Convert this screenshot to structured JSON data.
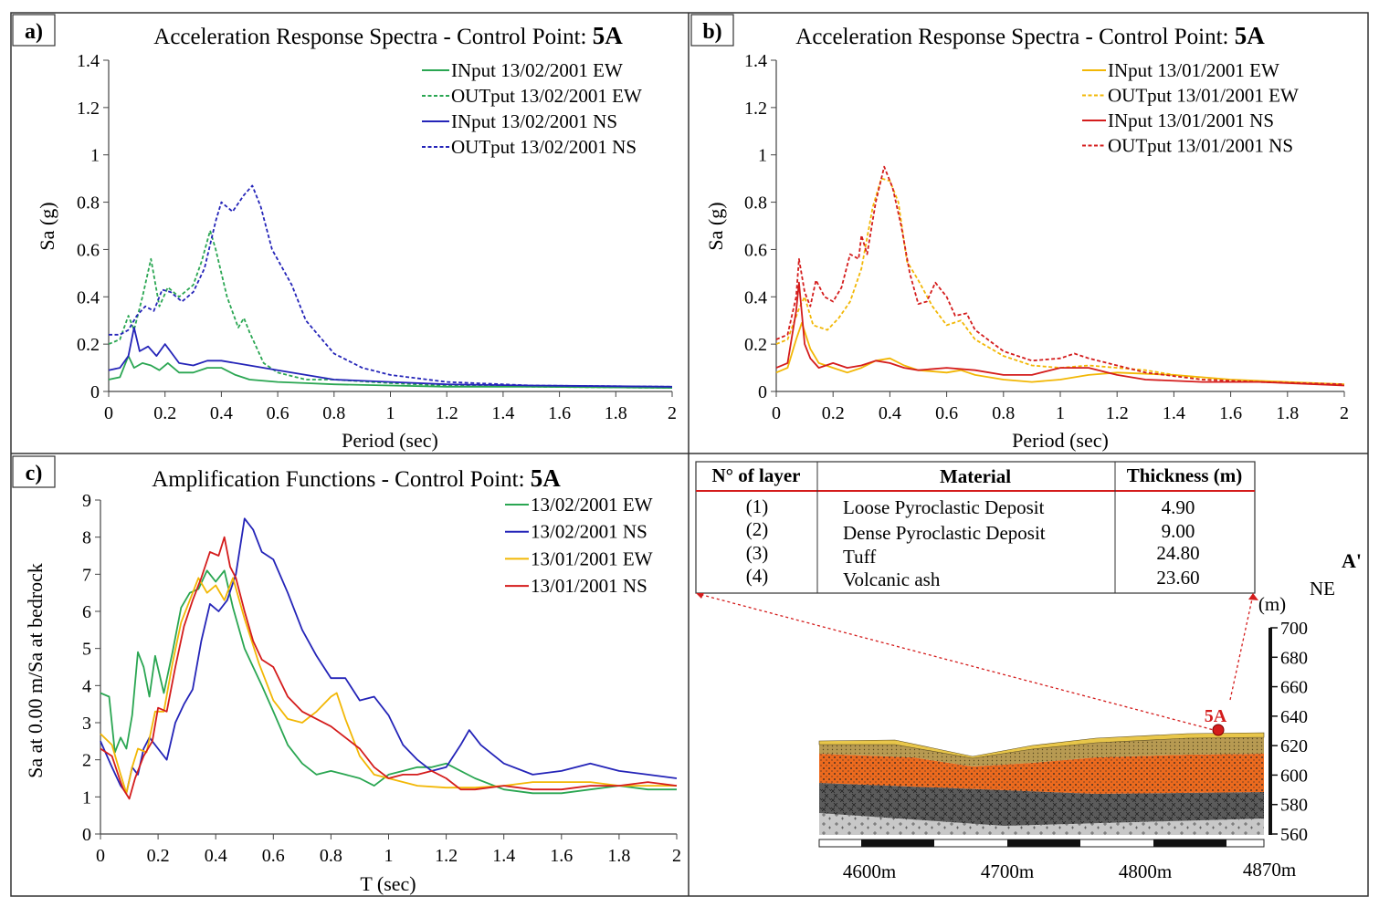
{
  "chart_data": [
    {
      "type": "line",
      "panel_label": "a)",
      "title_prefix": "Acceleration Response Spectra - Control Point: ",
      "title_point": "5A",
      "xlabel": "Period (sec)",
      "ylabel": "Sa (g)",
      "xlim": [
        0,
        2
      ],
      "ylim": [
        0,
        1.4
      ],
      "xticks": [
        "0",
        "0.2",
        "0.4",
        "0.6",
        "0.8",
        "1",
        "1.2",
        "1.4",
        "1.6",
        "1.8",
        "2"
      ],
      "yticks": [
        "0",
        "0.2",
        "0.4",
        "0.6",
        "0.8",
        "1",
        "1.2",
        "1.4"
      ],
      "legend_position": "top-right",
      "series": [
        {
          "name": "INput 13/02/2001 EW",
          "color": "#2aa652",
          "dash": "solid",
          "x": [
            0,
            0.04,
            0.07,
            0.09,
            0.12,
            0.15,
            0.18,
            0.21,
            0.25,
            0.3,
            0.35,
            0.4,
            0.45,
            0.5,
            0.6,
            0.7,
            0.8,
            1.0,
            1.2,
            1.5,
            2.0
          ],
          "y": [
            0.05,
            0.06,
            0.15,
            0.1,
            0.12,
            0.11,
            0.09,
            0.12,
            0.08,
            0.08,
            0.1,
            0.1,
            0.07,
            0.05,
            0.04,
            0.035,
            0.03,
            0.025,
            0.02,
            0.02,
            0.015
          ]
        },
        {
          "name": "OUTput 13/02/2001 EW",
          "color": "#2aa652",
          "dash": "dashed",
          "x": [
            0,
            0.04,
            0.07,
            0.09,
            0.12,
            0.15,
            0.18,
            0.21,
            0.25,
            0.3,
            0.33,
            0.36,
            0.38,
            0.42,
            0.46,
            0.48,
            0.5,
            0.55,
            0.6,
            0.7,
            0.8,
            1.0,
            1.2,
            1.5,
            2.0
          ],
          "y": [
            0.2,
            0.22,
            0.32,
            0.26,
            0.4,
            0.56,
            0.36,
            0.44,
            0.4,
            0.45,
            0.55,
            0.68,
            0.6,
            0.4,
            0.27,
            0.31,
            0.25,
            0.12,
            0.08,
            0.05,
            0.05,
            0.035,
            0.025,
            0.02,
            0.015
          ]
        },
        {
          "name": "INput 13/02/2001 NS",
          "color": "#2424b8",
          "dash": "solid",
          "x": [
            0,
            0.04,
            0.07,
            0.09,
            0.11,
            0.14,
            0.17,
            0.2,
            0.25,
            0.3,
            0.35,
            0.4,
            0.5,
            0.6,
            0.7,
            0.8,
            1.0,
            1.2,
            1.5,
            2.0
          ],
          "y": [
            0.09,
            0.1,
            0.15,
            0.27,
            0.17,
            0.19,
            0.15,
            0.2,
            0.12,
            0.11,
            0.13,
            0.13,
            0.11,
            0.09,
            0.07,
            0.05,
            0.04,
            0.03,
            0.025,
            0.02
          ]
        },
        {
          "name": "OUTput 13/02/2001 NS",
          "color": "#2424b8",
          "dash": "dashed",
          "x": [
            0,
            0.04,
            0.07,
            0.1,
            0.13,
            0.16,
            0.19,
            0.22,
            0.26,
            0.3,
            0.34,
            0.38,
            0.4,
            0.44,
            0.48,
            0.51,
            0.54,
            0.58,
            0.65,
            0.7,
            0.8,
            0.9,
            1.0,
            1.2,
            1.5,
            2.0
          ],
          "y": [
            0.24,
            0.24,
            0.26,
            0.32,
            0.36,
            0.34,
            0.43,
            0.42,
            0.38,
            0.42,
            0.52,
            0.72,
            0.8,
            0.76,
            0.83,
            0.87,
            0.78,
            0.6,
            0.45,
            0.3,
            0.16,
            0.1,
            0.07,
            0.04,
            0.025,
            0.02
          ]
        }
      ]
    },
    {
      "type": "line",
      "panel_label": "b)",
      "title_prefix": "Acceleration Response Spectra - Control Point: ",
      "title_point": "5A",
      "xlabel": "Period (sec)",
      "ylabel": "Sa (g)",
      "xlim": [
        0,
        2
      ],
      "ylim": [
        0,
        1.4
      ],
      "xticks": [
        "0",
        "0.2",
        "0.4",
        "0.6",
        "0.8",
        "1",
        "1.2",
        "1.4",
        "1.6",
        "1.8",
        "2"
      ],
      "yticks": [
        "0",
        "0.2",
        "0.4",
        "0.6",
        "0.8",
        "1",
        "1.2",
        "1.4"
      ],
      "legend_position": "top-right",
      "series": [
        {
          "name": "INput 13/01/2001 EW",
          "color": "#f2b705",
          "dash": "solid",
          "x": [
            0,
            0.04,
            0.07,
            0.09,
            0.12,
            0.15,
            0.2,
            0.25,
            0.3,
            0.35,
            0.4,
            0.45,
            0.5,
            0.6,
            0.65,
            0.7,
            0.8,
            0.9,
            1.0,
            1.1,
            1.2,
            1.4,
            1.6,
            1.8,
            2.0
          ],
          "y": [
            0.08,
            0.1,
            0.22,
            0.29,
            0.18,
            0.12,
            0.1,
            0.08,
            0.1,
            0.13,
            0.14,
            0.11,
            0.09,
            0.08,
            0.09,
            0.07,
            0.05,
            0.04,
            0.05,
            0.07,
            0.08,
            0.07,
            0.05,
            0.04,
            0.03
          ]
        },
        {
          "name": "OUTput 13/01/2001 EW",
          "color": "#f2b705",
          "dash": "dashed",
          "x": [
            0,
            0.04,
            0.08,
            0.1,
            0.13,
            0.18,
            0.22,
            0.26,
            0.3,
            0.34,
            0.37,
            0.4,
            0.43,
            0.46,
            0.5,
            0.55,
            0.6,
            0.65,
            0.7,
            0.8,
            0.9,
            1.0,
            1.1,
            1.3,
            1.5,
            2.0
          ],
          "y": [
            0.2,
            0.22,
            0.35,
            0.4,
            0.28,
            0.26,
            0.31,
            0.38,
            0.52,
            0.78,
            0.9,
            0.89,
            0.8,
            0.55,
            0.47,
            0.36,
            0.28,
            0.3,
            0.22,
            0.15,
            0.11,
            0.1,
            0.11,
            0.09,
            0.05,
            0.03
          ]
        },
        {
          "name": "INput 13/01/2001 NS",
          "color": "#d41c1c",
          "dash": "solid",
          "x": [
            0,
            0.04,
            0.07,
            0.08,
            0.1,
            0.12,
            0.15,
            0.2,
            0.25,
            0.3,
            0.35,
            0.4,
            0.45,
            0.5,
            0.6,
            0.7,
            0.8,
            0.9,
            1.0,
            1.1,
            1.2,
            1.3,
            1.5,
            1.7,
            2.0
          ],
          "y": [
            0.1,
            0.12,
            0.34,
            0.46,
            0.2,
            0.14,
            0.1,
            0.12,
            0.1,
            0.11,
            0.13,
            0.12,
            0.1,
            0.09,
            0.1,
            0.09,
            0.07,
            0.07,
            0.1,
            0.1,
            0.07,
            0.05,
            0.04,
            0.04,
            0.025
          ]
        },
        {
          "name": "OUTput 13/01/2001 NS",
          "color": "#d41c1c",
          "dash": "dashed",
          "x": [
            0,
            0.04,
            0.07,
            0.08,
            0.1,
            0.12,
            0.14,
            0.17,
            0.2,
            0.23,
            0.26,
            0.29,
            0.3,
            0.32,
            0.35,
            0.38,
            0.41,
            0.44,
            0.47,
            0.5,
            0.53,
            0.56,
            0.6,
            0.63,
            0.67,
            0.7,
            0.8,
            0.9,
            1.0,
            1.05,
            1.1,
            1.2,
            1.3,
            1.5,
            1.7,
            2.0
          ],
          "y": [
            0.22,
            0.24,
            0.4,
            0.56,
            0.42,
            0.36,
            0.47,
            0.4,
            0.38,
            0.44,
            0.58,
            0.56,
            0.66,
            0.58,
            0.8,
            0.95,
            0.86,
            0.7,
            0.5,
            0.37,
            0.38,
            0.46,
            0.4,
            0.32,
            0.33,
            0.26,
            0.17,
            0.13,
            0.14,
            0.16,
            0.14,
            0.11,
            0.08,
            0.05,
            0.04,
            0.03
          ]
        }
      ]
    },
    {
      "type": "line",
      "panel_label": "c)",
      "title_prefix": "Amplification Functions - Control Point: ",
      "title_point": "5A",
      "xlabel": "T (sec)",
      "ylabel": "Sa at 0.00 m/Sa at bedrock",
      "xlim": [
        0,
        2
      ],
      "ylim": [
        0,
        9
      ],
      "xticks": [
        "0",
        "0.2",
        "0.4",
        "0.6",
        "0.8",
        "1",
        "1.2",
        "1.4",
        "1.6",
        "1.8",
        "2"
      ],
      "yticks": [
        "0",
        "1",
        "2",
        "3",
        "4",
        "5",
        "6",
        "7",
        "8",
        "9"
      ],
      "legend_position": "top-right",
      "series": [
        {
          "name": "13/02/2001 EW",
          "color": "#2aa652",
          "dash": "solid",
          "x": [
            0,
            0.03,
            0.05,
            0.07,
            0.09,
            0.11,
            0.13,
            0.15,
            0.17,
            0.19,
            0.22,
            0.25,
            0.28,
            0.31,
            0.34,
            0.37,
            0.4,
            0.43,
            0.46,
            0.5,
            0.53,
            0.56,
            0.6,
            0.65,
            0.7,
            0.75,
            0.8,
            0.85,
            0.9,
            0.95,
            1.0,
            1.05,
            1.1,
            1.15,
            1.2,
            1.3,
            1.4,
            1.5,
            1.6,
            1.7,
            1.8,
            1.9,
            2.0
          ],
          "y": [
            3.8,
            3.7,
            2.2,
            2.6,
            2.3,
            3.2,
            4.9,
            4.5,
            3.7,
            4.8,
            3.8,
            4.9,
            6.1,
            6.5,
            6.6,
            7.1,
            6.8,
            7.1,
            6.1,
            5.0,
            4.5,
            4.0,
            3.3,
            2.4,
            1.9,
            1.6,
            1.7,
            1.6,
            1.5,
            1.3,
            1.6,
            1.7,
            1.8,
            1.8,
            1.9,
            1.5,
            1.2,
            1.1,
            1.1,
            1.2,
            1.3,
            1.2,
            1.2
          ]
        },
        {
          "name": "13/02/2001 NS",
          "color": "#2424b8",
          "dash": "solid",
          "x": [
            0,
            0.04,
            0.07,
            0.09,
            0.11,
            0.13,
            0.15,
            0.17,
            0.2,
            0.23,
            0.26,
            0.29,
            0.32,
            0.35,
            0.38,
            0.41,
            0.44,
            0.47,
            0.5,
            0.53,
            0.56,
            0.6,
            0.65,
            0.7,
            0.75,
            0.8,
            0.85,
            0.9,
            0.95,
            1.0,
            1.05,
            1.1,
            1.15,
            1.2,
            1.25,
            1.28,
            1.32,
            1.4,
            1.5,
            1.6,
            1.7,
            1.8,
            1.9,
            2.0
          ],
          "y": [
            2.5,
            1.8,
            1.3,
            1.1,
            1.8,
            1.6,
            2.3,
            2.6,
            2.3,
            2.0,
            3.0,
            3.5,
            3.9,
            5.2,
            6.2,
            6.0,
            6.3,
            7.0,
            8.5,
            8.2,
            7.6,
            7.4,
            6.5,
            5.5,
            4.8,
            4.2,
            4.2,
            3.6,
            3.7,
            3.2,
            2.4,
            2.0,
            1.7,
            1.8,
            2.4,
            2.8,
            2.4,
            1.9,
            1.6,
            1.7,
            1.9,
            1.7,
            1.6,
            1.5
          ]
        },
        {
          "name": "13/01/2001 EW",
          "color": "#f2b705",
          "dash": "solid",
          "x": [
            0,
            0.04,
            0.07,
            0.09,
            0.11,
            0.13,
            0.16,
            0.19,
            0.22,
            0.25,
            0.28,
            0.31,
            0.34,
            0.37,
            0.4,
            0.43,
            0.46,
            0.5,
            0.55,
            0.6,
            0.65,
            0.7,
            0.75,
            0.8,
            0.82,
            0.85,
            0.9,
            0.95,
            1.0,
            1.1,
            1.2,
            1.3,
            1.4,
            1.5,
            1.6,
            1.7,
            1.8,
            1.9,
            2.0
          ],
          "y": [
            2.7,
            2.4,
            1.6,
            1.1,
            1.8,
            2.3,
            2.2,
            3.3,
            3.3,
            4.6,
            5.7,
            6.3,
            6.9,
            6.5,
            6.7,
            6.3,
            6.9,
            5.8,
            4.6,
            3.6,
            3.1,
            3.0,
            3.3,
            3.7,
            3.8,
            3.1,
            2.1,
            1.6,
            1.5,
            1.3,
            1.25,
            1.25,
            1.3,
            1.4,
            1.4,
            1.4,
            1.3,
            1.3,
            1.3
          ]
        },
        {
          "name": "13/01/2001 NS",
          "color": "#d41c1c",
          "dash": "solid",
          "x": [
            0,
            0.04,
            0.07,
            0.08,
            0.1,
            0.12,
            0.15,
            0.18,
            0.2,
            0.23,
            0.26,
            0.29,
            0.32,
            0.35,
            0.38,
            0.41,
            0.43,
            0.45,
            0.47,
            0.5,
            0.53,
            0.56,
            0.6,
            0.65,
            0.7,
            0.75,
            0.8,
            0.9,
            0.95,
            1.0,
            1.05,
            1.1,
            1.15,
            1.2,
            1.25,
            1.3,
            1.4,
            1.5,
            1.6,
            1.7,
            1.8,
            1.9,
            2.0
          ],
          "y": [
            2.3,
            2.1,
            1.4,
            1.2,
            0.95,
            1.5,
            2.1,
            2.5,
            3.4,
            3.3,
            4.5,
            5.6,
            6.3,
            6.9,
            7.6,
            7.5,
            8.0,
            7.2,
            6.9,
            6.0,
            5.2,
            4.7,
            4.5,
            3.7,
            3.3,
            3.1,
            2.9,
            2.3,
            1.8,
            1.5,
            1.6,
            1.6,
            1.7,
            1.5,
            1.2,
            1.2,
            1.3,
            1.2,
            1.2,
            1.3,
            1.3,
            1.4,
            1.3
          ]
        }
      ]
    }
  ],
  "panel_d": {
    "table": {
      "headers": [
        "N° of layer",
        "Material",
        "Thickness (m)"
      ],
      "rows": [
        {
          "n": "(1)",
          "material": "Loose Pyroclastic Deposit",
          "thickness": "4.90"
        },
        {
          "n": "(2)",
          "material": "Dense Pyroclastic Deposit",
          "thickness": "9.00"
        },
        {
          "n": "(3)",
          "material": "Tuff",
          "thickness": "24.80"
        },
        {
          "n": "(4)",
          "material": "Volcanic ash",
          "thickness": "23.60"
        }
      ]
    },
    "section_end_label": "A'",
    "direction_label": "NE",
    "elevation_unit": "(m)",
    "elevation_ticks": [
      "700",
      "680",
      "660",
      "640",
      "620",
      "600",
      "580",
      "560"
    ],
    "distance_labels": [
      "4600m",
      "4700m",
      "4800m",
      "4870m"
    ],
    "point_label": "5A",
    "colors": {
      "layer1": "#e8c64a",
      "layer2": "#b79a52",
      "layer3": "#ec6a1e",
      "layer4": "#5b5b5b",
      "layer5": "#c8c8c8",
      "marker": "#d41c1c"
    }
  }
}
